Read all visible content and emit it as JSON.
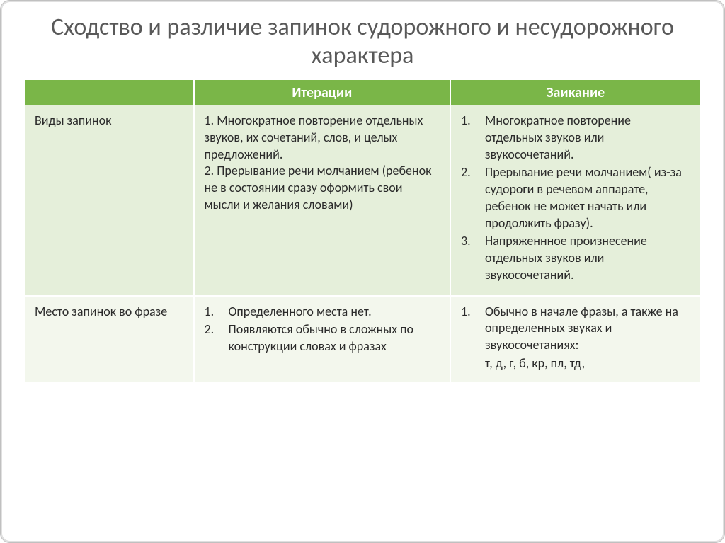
{
  "title": "Сходство и различие запинок судорожного и несудорожного характера",
  "colors": {
    "header_bg": "#7ab648",
    "header_fg": "#ffffff",
    "row_even_bg": "#e5efda",
    "row_odd_bg": "#f3f7ed",
    "title_color": "#595959",
    "text_color": "#2b2b2b"
  },
  "typography": {
    "title_fontsize": 34,
    "header_fontsize": 20,
    "body_fontsize": 18,
    "rowlabel_fontsize": 20
  },
  "table": {
    "columns": [
      "",
      "Итерации",
      "Заикание"
    ],
    "rows": [
      {
        "label": "Виды запинок",
        "iter": {
          "style": "flat",
          "items": [
            "1. Многократное повторение отдельных звуков, их сочетаний, слов, и целых предложений.",
            "2. Прерывание речи молчанием (ребенок не в состоянии сразу оформить свои мысли и желания словами)"
          ]
        },
        "zaik": {
          "style": "num",
          "items": [
            "Многократное повторение отдельных звуков или звукосочетаний.",
            "Прерывание речи молчанием( из-за судороги в речевом аппарате, ребенок не может начать или продолжить фразу).",
            "Напряженнное произнесение отдельных звуков или звукосочетаний."
          ]
        }
      },
      {
        "label": "Место запинок во фразе",
        "iter": {
          "style": "num",
          "items": [
            "Определенного места нет.",
            "Появляются обычно в сложных по конструкции словах и фразах"
          ]
        },
        "zaik": {
          "style": "num",
          "items": [
            "Обычно в начале фразы, а также на определенных звуках и звукосочетаниях:"
          ],
          "tail": "т, д, г, б, кр, пл, тд,"
        }
      }
    ]
  }
}
